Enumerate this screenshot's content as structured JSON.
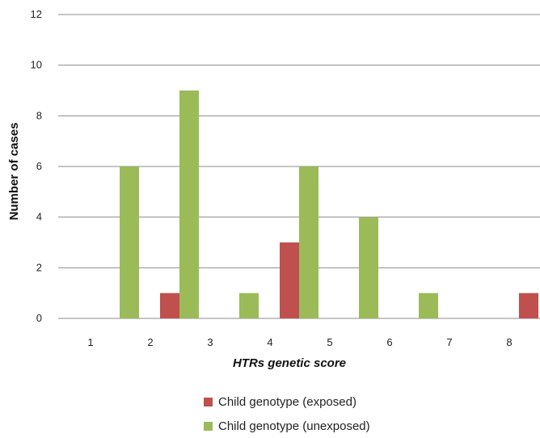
{
  "chart_data": {
    "type": "bar",
    "categories": [
      "1",
      "2",
      "3",
      "4",
      "5",
      "6",
      "7",
      "8"
    ],
    "series": [
      {
        "name": "Child genotype (exposed)",
        "color": "#c0504d",
        "values": [
          0,
          1,
          0,
          3,
          0,
          0,
          0,
          1
        ]
      },
      {
        "name": "Child genotype (unexposed)",
        "color": "#9bbb59",
        "values": [
          6,
          9,
          1,
          6,
          4,
          1,
          0,
          0
        ]
      }
    ],
    "xlabel": "HTRs genetic score",
    "ylabel": "Number of cases",
    "ylim": [
      0,
      12
    ],
    "yticks": [
      0,
      2,
      4,
      6,
      8,
      10,
      12
    ],
    "grid": true,
    "legend_position": "bottom"
  }
}
